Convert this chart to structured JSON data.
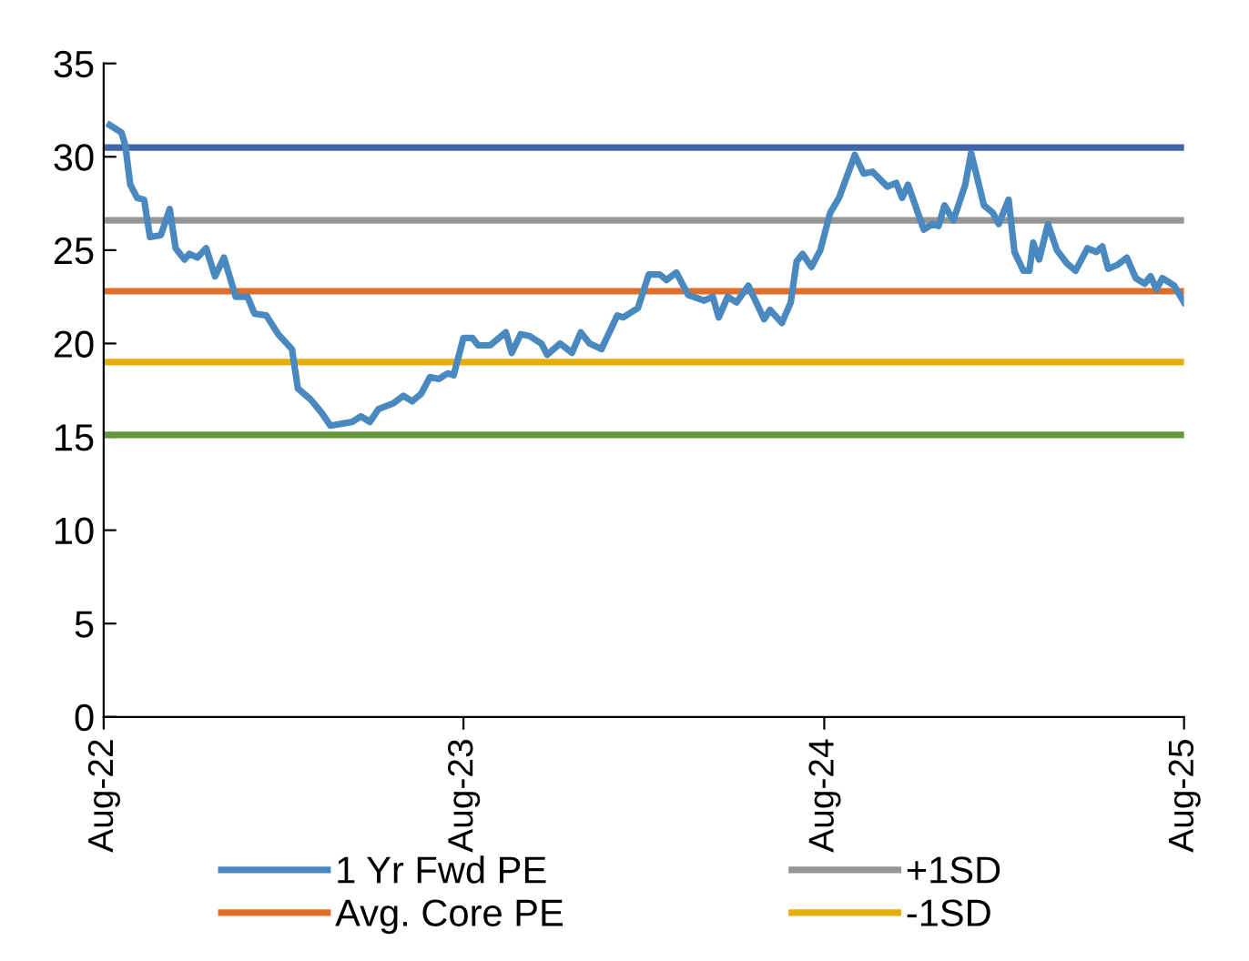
{
  "chart_data": {
    "type": "line",
    "xlim": [
      "2022-08-01",
      "2025-08-01"
    ],
    "xticks": [
      {
        "value": "2022-08-01",
        "label": "Aug-22"
      },
      {
        "value": "2023-08-01",
        "label": "Aug-23"
      },
      {
        "value": "2024-08-01",
        "label": "Aug-24"
      },
      {
        "value": "2025-08-01",
        "label": "Aug-25"
      }
    ],
    "ylim": [
      0,
      35
    ],
    "yticks": [
      0,
      5,
      10,
      15,
      20,
      25,
      30,
      35
    ],
    "grid": false,
    "legend": "bottom",
    "line_style": "solid",
    "marker": "none",
    "series": [
      {
        "name": "1 Yr Fwd PE",
        "color": "#4a89c0",
        "x": [
          "2022-08-07",
          "2022-08-19",
          "2022-08-23",
          "2022-08-28",
          "2022-09-04",
          "2022-09-11",
          "2022-09-17",
          "2022-09-28",
          "2022-10-07",
          "2022-10-13",
          "2022-10-22",
          "2022-10-27",
          "2022-11-04",
          "2022-11-13",
          "2022-11-22",
          "2022-12-01",
          "2022-12-13",
          "2022-12-25",
          "2023-01-01",
          "2023-01-13",
          "2023-01-25",
          "2023-02-08",
          "2023-02-14",
          "2023-02-27",
          "2023-03-10",
          "2023-03-19",
          "2023-04-10",
          "2023-04-19",
          "2023-04-28",
          "2023-05-07",
          "2023-05-22",
          "2023-06-01",
          "2023-06-10",
          "2023-06-19",
          "2023-06-28",
          "2023-07-07",
          "2023-07-16",
          "2023-07-22",
          "2023-08-01",
          "2023-08-10",
          "2023-08-16",
          "2023-08-28",
          "2023-09-13",
          "2023-09-19",
          "2023-09-28",
          "2023-10-07",
          "2023-10-19",
          "2023-10-25",
          "2023-11-07",
          "2023-11-19",
          "2023-11-28",
          "2023-12-07",
          "2023-12-19",
          "2024-01-04",
          "2024-01-10",
          "2024-01-25",
          "2024-02-05",
          "2024-02-16",
          "2024-02-23",
          "2024-03-04",
          "2024-03-16",
          "2024-04-01",
          "2024-04-10",
          "2024-04-16",
          "2024-04-25",
          "2024-05-04",
          "2024-05-16",
          "2024-06-01",
          "2024-06-07",
          "2024-06-19",
          "2024-06-28",
          "2024-07-04",
          "2024-07-10",
          "2024-07-19",
          "2024-07-28",
          "2024-08-07",
          "2024-08-16",
          "2024-09-01",
          "2024-09-10",
          "2024-09-19",
          "2024-10-04",
          "2024-10-13",
          "2024-10-19",
          "2024-10-25",
          "2024-11-10",
          "2024-11-19",
          "2024-11-25",
          "2024-12-01",
          "2024-12-10",
          "2024-12-22",
          "2024-12-28",
          "2025-01-10",
          "2025-01-19",
          "2025-01-25",
          "2025-02-04",
          "2025-02-10",
          "2025-02-19",
          "2025-02-25",
          "2025-03-01",
          "2025-03-07",
          "2025-03-16",
          "2025-03-25",
          "2025-04-04",
          "2025-04-13",
          "2025-04-25",
          "2025-05-04",
          "2025-05-10",
          "2025-05-16",
          "2025-05-25",
          "2025-06-04",
          "2025-06-13",
          "2025-06-22",
          "2025-06-28",
          "2025-07-04",
          "2025-07-10",
          "2025-07-22",
          "2025-08-01"
        ],
        "values": [
          31.7,
          31.3,
          30.6,
          28.5,
          27.8,
          27.7,
          25.7,
          25.8,
          27.2,
          25.1,
          24.5,
          24.8,
          24.6,
          25.1,
          23.6,
          24.6,
          22.5,
          22.5,
          21.6,
          21.5,
          20.5,
          19.7,
          17.6,
          17.0,
          16.3,
          15.6,
          15.8,
          16.1,
          15.8,
          16.5,
          16.8,
          17.2,
          16.9,
          17.3,
          18.2,
          18.1,
          18.4,
          18.3,
          20.3,
          20.3,
          19.9,
          19.9,
          20.6,
          19.5,
          20.5,
          20.4,
          20.0,
          19.4,
          20.0,
          19.5,
          20.6,
          20.0,
          19.7,
          21.5,
          21.4,
          21.9,
          23.7,
          23.7,
          23.4,
          23.8,
          22.6,
          22.3,
          22.5,
          21.4,
          22.5,
          22.2,
          23.1,
          21.3,
          21.8,
          21.1,
          22.2,
          24.4,
          24.8,
          24.1,
          25.0,
          27.0,
          27.8,
          30.1,
          29.1,
          29.2,
          28.4,
          28.6,
          27.8,
          28.5,
          26.1,
          26.4,
          26.3,
          27.4,
          26.6,
          28.5,
          30.2,
          27.4,
          27.0,
          26.4,
          27.7,
          24.9,
          23.9,
          23.9,
          25.4,
          24.5,
          26.4,
          25.0,
          24.3,
          23.9,
          25.1,
          24.9,
          25.2,
          24.0,
          24.2,
          24.6,
          23.5,
          23.2,
          23.6,
          22.9,
          23.5,
          23.1,
          22.2
        ]
      },
      {
        "name": "Avg. Core PE",
        "color": "#e06d28",
        "x": [
          "2022-08-01",
          "2025-08-01"
        ],
        "values": [
          22.8,
          22.8
        ]
      },
      {
        "name": "+1SD",
        "color": "#969696",
        "x": [
          "2022-08-01",
          "2025-08-01"
        ],
        "values": [
          26.6,
          26.6
        ]
      },
      {
        "name": "-1SD",
        "color": "#e6ae0a",
        "x": [
          "2022-08-01",
          "2025-08-01"
        ],
        "values": [
          19.0,
          19.0
        ]
      },
      {
        "color": "#4264a8",
        "x": [
          "2022-08-01",
          "2025-08-01"
        ],
        "values": [
          30.5,
          30.5
        ]
      },
      {
        "color": "#65983c",
        "x": [
          "2022-08-01",
          "2025-08-01"
        ],
        "values": [
          15.1,
          15.1
        ]
      }
    ]
  }
}
